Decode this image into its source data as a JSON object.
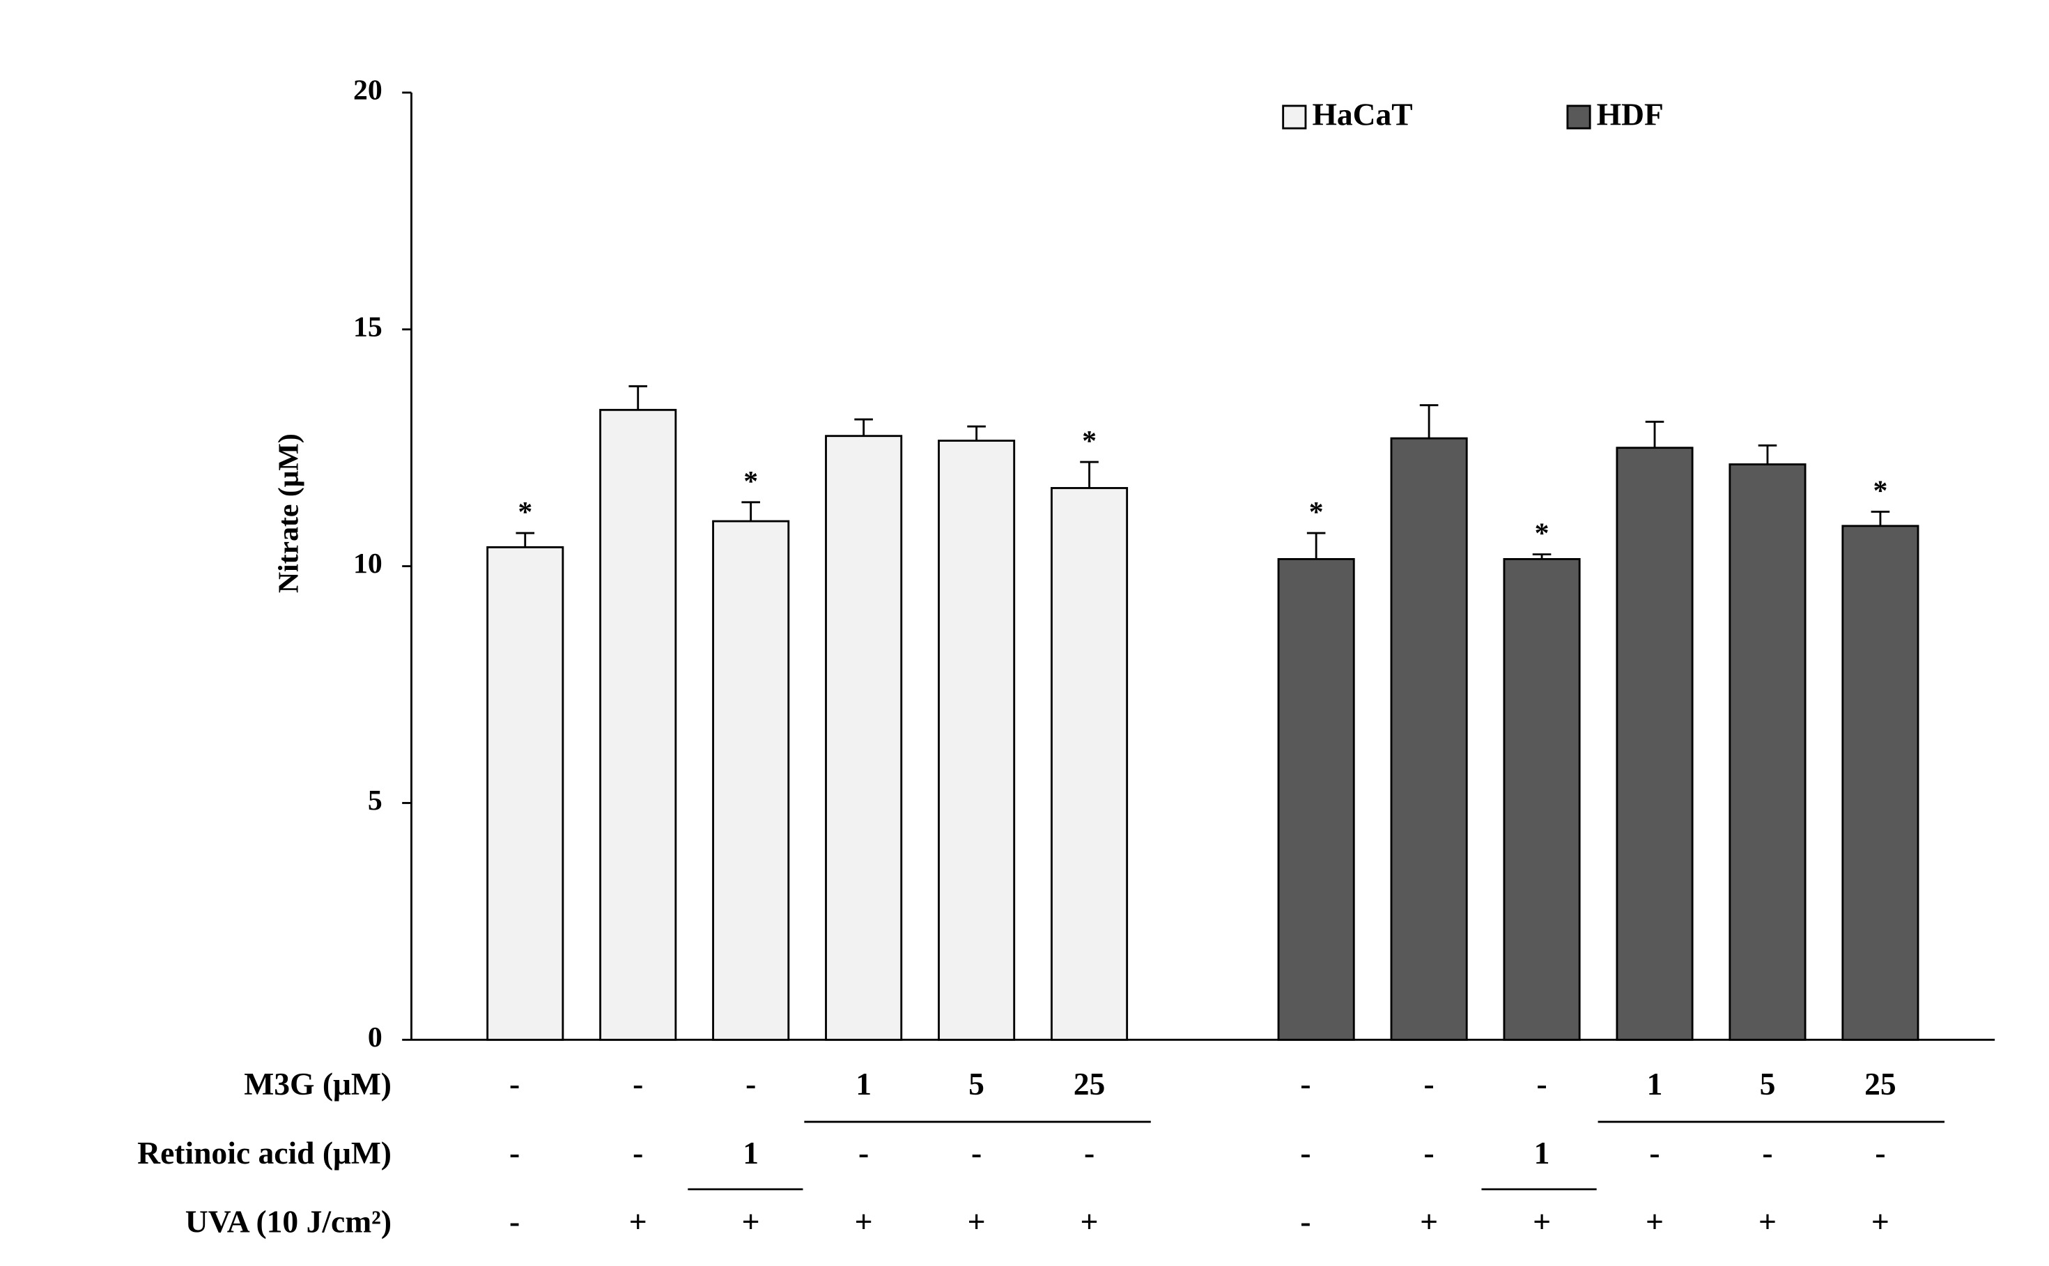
{
  "chart_data": {
    "type": "bar",
    "y_label": "Nitrate (μM)",
    "ylim": [
      0,
      20
    ],
    "yticks": [
      0,
      5,
      10,
      15,
      20
    ],
    "legend": "top-right",
    "series": [
      {
        "name": "HaCaT",
        "color": "#f2f2f2",
        "values": [
          10.4,
          13.3,
          10.95,
          12.75,
          12.65,
          11.65
        ],
        "errors": [
          0.3,
          0.5,
          0.4,
          0.35,
          0.3,
          0.55
        ],
        "significance": [
          "*",
          null,
          "*",
          null,
          null,
          "*"
        ]
      },
      {
        "name": "HDF",
        "color": "#595959",
        "values": [
          10.15,
          12.7,
          10.15,
          12.5,
          12.15,
          10.85
        ],
        "errors": [
          0.55,
          0.7,
          0.1,
          0.55,
          0.4,
          0.3
        ],
        "significance": [
          "*",
          null,
          "*",
          null,
          null,
          "*"
        ]
      }
    ],
    "treatments": [
      {
        "label": "M3G (μM)",
        "values": [
          "-",
          "-",
          "-",
          "1",
          "5",
          "25"
        ]
      },
      {
        "label": "Retinoic acid (μM)",
        "values": [
          "-",
          "-",
          "1",
          "-",
          "-",
          "-"
        ]
      },
      {
        "label": "UVA (10 J/cm²)",
        "values": [
          "-",
          "+",
          "+",
          "+",
          "+",
          "+"
        ]
      }
    ]
  }
}
